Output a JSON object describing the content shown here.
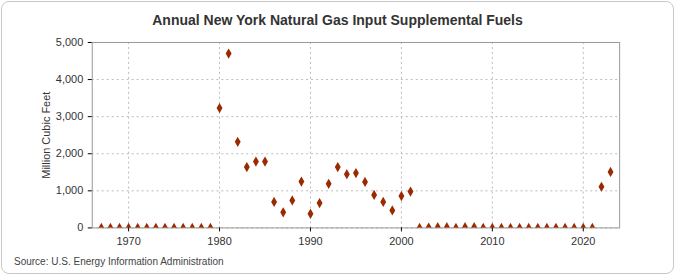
{
  "chart_data": {
    "type": "scatter",
    "title": "Annual New York Natural Gas Input Supplemental Fuels",
    "y_label": "Million Cubic Feet",
    "source": "Source: U.S. Energy Information Administration",
    "x": [
      1967,
      1968,
      1969,
      1970,
      1971,
      1972,
      1973,
      1974,
      1975,
      1976,
      1977,
      1978,
      1979,
      1980,
      1981,
      1982,
      1983,
      1984,
      1985,
      1986,
      1987,
      1988,
      1989,
      1990,
      1991,
      1992,
      1993,
      1994,
      1995,
      1996,
      1997,
      1998,
      1999,
      2000,
      2001,
      2002,
      2003,
      2004,
      2005,
      2006,
      2007,
      2008,
      2009,
      2010,
      2011,
      2012,
      2013,
      2014,
      2015,
      2016,
      2017,
      2018,
      2019,
      2020,
      2021,
      2022,
      2023
    ],
    "values": [
      0,
      0,
      0,
      0,
      0,
      0,
      0,
      0,
      0,
      0,
      0,
      0,
      0,
      3230,
      4700,
      2320,
      1640,
      1790,
      1790,
      700,
      420,
      740,
      1250,
      380,
      670,
      1190,
      1640,
      1450,
      1480,
      1240,
      890,
      700,
      470,
      860,
      980,
      0,
      10,
      20,
      20,
      0,
      20,
      20,
      0,
      0,
      0,
      0,
      0,
      0,
      0,
      0,
      0,
      0,
      0,
      0,
      0,
      1110,
      1510
    ],
    "color": "#9c2a00",
    "marker": "diamond",
    "grid": true,
    "xlim": [
      1966,
      2024
    ],
    "ylim": [
      0,
      5000
    ],
    "xticks": [
      1970,
      1980,
      1990,
      2000,
      2010,
      2020
    ],
    "yticks": [
      0,
      {
        "value": 1000,
        "label": "1,000"
      },
      {
        "value": 2000,
        "label": "2,000"
      },
      {
        "value": 3000,
        "label": "3,000"
      },
      {
        "value": 4000,
        "label": "4,000"
      },
      {
        "value": 5000,
        "label": "5,000"
      }
    ]
  }
}
